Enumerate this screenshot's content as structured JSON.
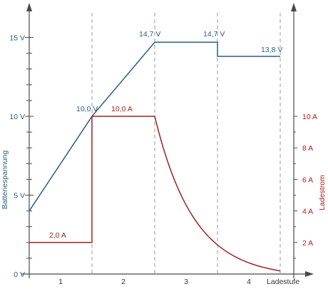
{
  "chart_data": {
    "type": "line",
    "xlabel": "Ladestufe",
    "ylabel_left": "Batteriespannung",
    "ylabel_right": "Ladestrom",
    "stage_labels": [
      "1",
      "2",
      "3",
      "4"
    ],
    "stage_boundaries": [
      1,
      2,
      3,
      4
    ],
    "xlim": [
      0,
      4.12
    ],
    "ylim_left": [
      0,
      15.8
    ],
    "ylim_right": [
      0,
      10.533
    ],
    "y_ticks_left": [
      {
        "value": 0,
        "label": "0 V"
      },
      {
        "value": 5,
        "label": "5 V"
      },
      {
        "value": 10,
        "label": "10 V"
      },
      {
        "value": 15,
        "label": "15 V"
      }
    ],
    "y_ticks_right": [
      {
        "value": 2,
        "label": "2 A"
      },
      {
        "value": 4,
        "label": "4 A"
      },
      {
        "value": 6,
        "label": "6 A"
      },
      {
        "value": 8,
        "label": "8 A"
      },
      {
        "value": 10,
        "label": "10 A"
      }
    ],
    "series": [
      {
        "name": "Batteriespannung",
        "axis": "left",
        "color": "#2a5f8a",
        "points": [
          [
            0,
            4.0
          ],
          [
            1,
            10.0
          ],
          [
            2,
            14.7
          ],
          [
            3,
            14.7
          ],
          [
            3,
            13.8
          ],
          [
            4,
            13.8
          ]
        ]
      },
      {
        "name": "Ladestrom",
        "axis": "right",
        "color": "#a52020",
        "points": [
          [
            0,
            2.0
          ],
          [
            1,
            2.0
          ],
          [
            1,
            10.0
          ],
          [
            2,
            10.0
          ]
        ],
        "decay": {
          "x_start": 2,
          "x_end": 4,
          "y_start": 10.0,
          "y_end": 0.2
        }
      }
    ],
    "annotations": [
      {
        "text": "10,0 V",
        "x": 1,
        "y": 10.0,
        "axis": "left",
        "color": "#2a5f8a"
      },
      {
        "text": "14,7 V",
        "x": 2,
        "y": 14.7,
        "axis": "left",
        "color": "#2a5f8a"
      },
      {
        "text": "14,7 V",
        "x": 3,
        "y": 14.7,
        "axis": "left",
        "color": "#2a5f8a"
      },
      {
        "text": "13,8 V",
        "x": 4,
        "y": 13.8,
        "axis": "left",
        "color": "#2a5f8a"
      },
      {
        "text": "2,0 A",
        "x": 0.5,
        "y": 2.0,
        "axis": "right",
        "color": "#a52020"
      },
      {
        "text": "10,0 A",
        "x": 1.5,
        "y": 10.0,
        "axis": "right",
        "color": "#a52020"
      }
    ],
    "colors": {
      "voltage": "#2a5f8a",
      "current": "#a52020",
      "axis": "#4a4a4a",
      "divider": "#9a9a9a"
    }
  }
}
